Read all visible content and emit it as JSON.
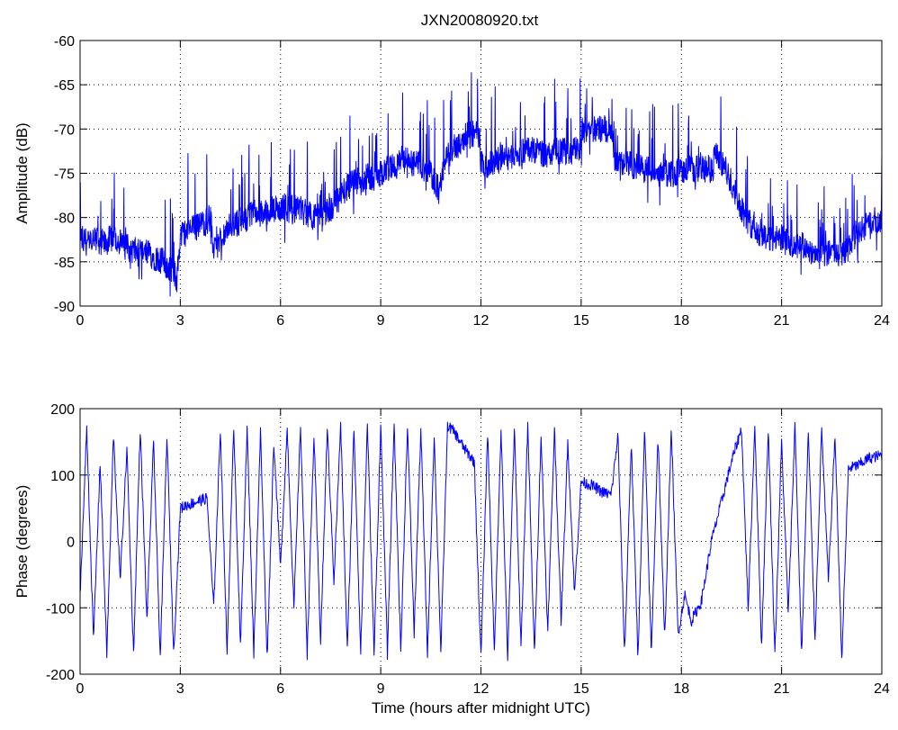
{
  "figure": {
    "title": "JXN20080920.txt",
    "line_color": "#0000ff"
  },
  "chart_data": [
    {
      "type": "line",
      "title": "JXN20080920.txt",
      "xlabel": "",
      "ylabel": "Amplitude (dB)",
      "xlim": [
        0,
        24
      ],
      "ylim": [
        -90,
        -60
      ],
      "xticks": [
        0,
        3,
        6,
        9,
        12,
        15,
        18,
        21,
        24
      ],
      "yticks": [
        -90,
        -85,
        -80,
        -75,
        -70,
        -65,
        -60
      ],
      "grid": true,
      "series": [
        {
          "color": "#0000ff",
          "x": [
            0,
            0.25,
            0.5,
            0.75,
            1,
            1.25,
            1.5,
            1.75,
            2,
            2.25,
            2.5,
            2.75,
            2.9,
            3.0,
            3.25,
            3.5,
            3.75,
            3.9,
            4.0,
            4.25,
            4.5,
            4.75,
            5,
            5.25,
            5.5,
            5.75,
            6,
            6.25,
            6.5,
            6.75,
            7,
            7.25,
            7.5,
            7.75,
            8,
            8.25,
            8.5,
            8.75,
            9,
            9.25,
            9.5,
            9.75,
            10,
            10.25,
            10.5,
            10.75,
            11,
            11.25,
            11.5,
            11.75,
            11.95,
            12.0,
            12.25,
            12.5,
            12.75,
            13,
            13.25,
            13.5,
            13.75,
            14,
            14.25,
            14.5,
            14.75,
            14.95,
            15.0,
            15.25,
            15.5,
            15.75,
            15.9,
            16.0,
            16.25,
            16.5,
            16.75,
            17,
            17.25,
            17.5,
            17.75,
            18,
            18.25,
            18.5,
            18.75,
            18.95,
            19.0,
            19.25,
            19.5,
            19.75,
            20,
            20.25,
            20.5,
            20.75,
            21,
            21.25,
            21.5,
            21.75,
            22,
            22.25,
            22.5,
            22.75,
            23,
            23.25,
            23.5,
            23.75,
            24
          ],
          "y": [
            -82,
            -83,
            -82.5,
            -83,
            -82,
            -83,
            -83.5,
            -84,
            -84,
            -84.5,
            -85,
            -86,
            -87,
            -82,
            -81.5,
            -81,
            -80.5,
            -80,
            -84,
            -82,
            -81,
            -80.5,
            -80,
            -79.5,
            -79.5,
            -79,
            -79,
            -79,
            -79,
            -79.5,
            -80,
            -80,
            -79,
            -78,
            -76.5,
            -76,
            -75.5,
            -75.5,
            -75,
            -74.5,
            -74,
            -73.5,
            -74,
            -74,
            -75,
            -77,
            -73,
            -72,
            -71,
            -70.5,
            -70.5,
            -74,
            -74,
            -73.5,
            -73,
            -73,
            -72.5,
            -72.5,
            -72.5,
            -73,
            -72.5,
            -72.5,
            -72.5,
            -72.5,
            -70,
            -70,
            -70,
            -70,
            -70,
            -74,
            -74,
            -74,
            -74.5,
            -74.5,
            -75,
            -75,
            -75,
            -74.5,
            -74.5,
            -74.5,
            -74.5,
            -74.5,
            -72.5,
            -74,
            -76,
            -78.5,
            -80.5,
            -81.5,
            -82,
            -82.5,
            -82.5,
            -83,
            -83,
            -83.5,
            -84,
            -84,
            -84,
            -84,
            -83.5,
            -81.5,
            -81,
            -81,
            -81
          ]
        }
      ]
    },
    {
      "type": "line",
      "title": "",
      "xlabel": "Time (hours after midnight UTC)",
      "ylabel": "Phase (degrees)",
      "xlim": [
        0,
        24
      ],
      "ylim": [
        -200,
        200
      ],
      "xticks": [
        0,
        3,
        6,
        9,
        12,
        15,
        18,
        21,
        24
      ],
      "yticks": [
        -200,
        -100,
        0,
        100,
        200
      ],
      "grid": true,
      "series": [
        {
          "color": "#0000ff",
          "x": [
            0,
            0.2,
            0.4,
            0.6,
            0.8,
            1.0,
            1.2,
            1.4,
            1.6,
            1.8,
            2.0,
            2.2,
            2.4,
            2.6,
            2.8,
            3.0,
            3.2,
            3.5,
            3.8,
            4.0,
            4.2,
            4.4,
            4.6,
            4.8,
            5.0,
            5.2,
            5.4,
            5.6,
            5.8,
            6.0,
            6.2,
            6.4,
            6.6,
            6.8,
            7.0,
            7.2,
            7.4,
            7.6,
            7.8,
            8.0,
            8.2,
            8.4,
            8.6,
            8.8,
            9.0,
            9.2,
            9.4,
            9.6,
            9.8,
            10.0,
            10.2,
            10.4,
            10.6,
            10.8,
            11.0,
            11.2,
            11.5,
            11.8,
            12.0,
            12.2,
            12.4,
            12.6,
            12.8,
            13.0,
            13.2,
            13.4,
            13.6,
            13.8,
            14.0,
            14.2,
            14.4,
            14.6,
            14.8,
            15.0,
            15.3,
            15.6,
            15.9,
            16.1,
            16.3,
            16.5,
            16.7,
            16.9,
            17.1,
            17.3,
            17.5,
            17.7,
            17.9,
            18.1,
            18.3,
            18.6,
            18.9,
            19.2,
            19.5,
            19.8,
            20.0,
            20.2,
            20.4,
            20.6,
            20.8,
            21.0,
            21.2,
            21.4,
            21.6,
            21.8,
            22.0,
            22.2,
            22.4,
            22.6,
            22.8,
            23.0,
            23.3,
            23.6,
            24.0
          ],
          "y": [
            -80,
            170,
            -150,
            120,
            -170,
            160,
            -60,
            140,
            -170,
            170,
            -120,
            150,
            -175,
            160,
            -170,
            50,
            55,
            60,
            65,
            -100,
            170,
            -170,
            175,
            -160,
            170,
            -170,
            165,
            -175,
            150,
            -40,
            170,
            -100,
            175,
            -170,
            160,
            -150,
            170,
            -60,
            175,
            -165,
            170,
            -170,
            178,
            -170,
            175,
            -170,
            178,
            -165,
            175,
            -140,
            170,
            -170,
            160,
            -170,
            175,
            165,
            140,
            120,
            -175,
            165,
            -170,
            170,
            -175,
            170,
            -160,
            175,
            -170,
            160,
            -140,
            170,
            -120,
            150,
            -80,
            90,
            85,
            75,
            70,
            160,
            -170,
            150,
            -175,
            170,
            -170,
            160,
            -150,
            170,
            -140,
            -80,
            -120,
            -90,
            0,
            60,
            120,
            170,
            -100,
            175,
            -160,
            170,
            -170,
            150,
            -110,
            175,
            -170,
            165,
            -150,
            170,
            -60,
            160,
            -180,
            110,
            115,
            125,
            130
          ]
        }
      ]
    }
  ]
}
